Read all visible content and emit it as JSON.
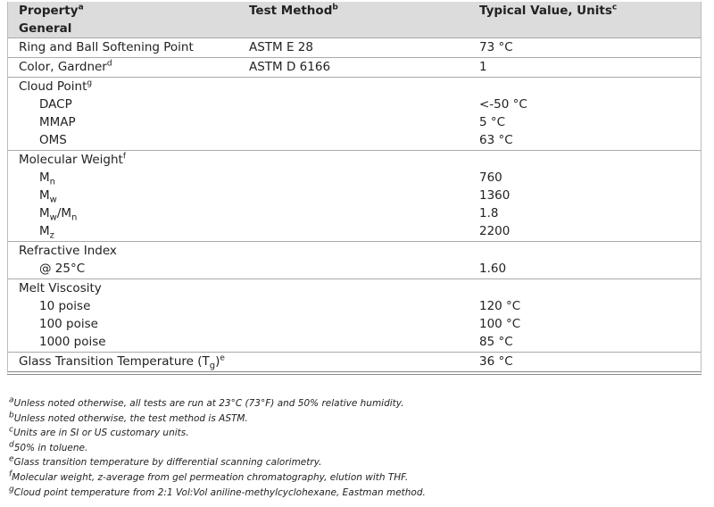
{
  "header": {
    "property": [
      {
        "t": "Property"
      },
      {
        "sup": "a"
      }
    ],
    "method": [
      {
        "t": "Test Method"
      },
      {
        "sup": "b"
      }
    ],
    "value": [
      {
        "t": "Typical Value, Units"
      },
      {
        "sup": "c"
      }
    ]
  },
  "section_title": "General",
  "groups": [
    {
      "label": [
        {
          "t": "Ring and Ball Softening Point"
        }
      ],
      "method": "ASTM E 28",
      "value": "73 °C",
      "items": []
    },
    {
      "label": [
        {
          "t": "Color, Gardner"
        },
        {
          "sup": "d"
        }
      ],
      "method": "ASTM D 6166",
      "value": "1",
      "items": []
    },
    {
      "label": [
        {
          "t": "Cloud Point"
        },
        {
          "sup": "g"
        }
      ],
      "items": [
        {
          "label": [
            {
              "t": "DACP"
            }
          ],
          "value": "<-50 °C"
        },
        {
          "label": [
            {
              "t": "MMAP"
            }
          ],
          "value": "5 °C"
        },
        {
          "label": [
            {
              "t": "OMS"
            }
          ],
          "value": "63 °C"
        }
      ]
    },
    {
      "label": [
        {
          "t": "Molecular Weight"
        },
        {
          "sup": "f"
        }
      ],
      "items": [
        {
          "label": [
            {
              "t": "M"
            },
            {
              "sub": "n"
            }
          ],
          "value": "760"
        },
        {
          "label": [
            {
              "t": "M"
            },
            {
              "sub": "w"
            }
          ],
          "value": "1360"
        },
        {
          "label": [
            {
              "t": "M"
            },
            {
              "sub": "w"
            },
            {
              "t": "/M"
            },
            {
              "sub": "n"
            }
          ],
          "value": "1.8"
        },
        {
          "label": [
            {
              "t": "M"
            },
            {
              "sub": "z"
            }
          ],
          "value": "2200"
        }
      ]
    },
    {
      "label": [
        {
          "t": "Refractive Index"
        }
      ],
      "items": [
        {
          "label": [
            {
              "t": "@ 25°C"
            }
          ],
          "value": "1.60"
        }
      ]
    },
    {
      "label": [
        {
          "t": "Melt Viscosity"
        }
      ],
      "items": [
        {
          "label": [
            {
              "t": "10 poise"
            }
          ],
          "value": "120 °C"
        },
        {
          "label": [
            {
              "t": "100 poise"
            }
          ],
          "value": "100 °C"
        },
        {
          "label": [
            {
              "t": "1000 poise"
            }
          ],
          "value": "85 °C"
        }
      ]
    },
    {
      "label": [
        {
          "t": "Glass Transition Temperature (T"
        },
        {
          "sub": "g"
        },
        {
          "t": ")"
        },
        {
          "sup": "e"
        }
      ],
      "value": "36 °C",
      "items": []
    }
  ],
  "footnotes": [
    {
      "mark": "a",
      "text": "Unless noted otherwise, all tests are run at 23°C (73°F) and 50% relative humidity."
    },
    {
      "mark": "b",
      "text": "Unless noted otherwise, the test method is ASTM."
    },
    {
      "mark": "c",
      "text": "Units are in SI or US customary units."
    },
    {
      "mark": "d",
      "text": "50% in toluene."
    },
    {
      "mark": "e",
      "text": "Glass transition temperature by differential scanning calorimetry."
    },
    {
      "mark": "f",
      "text": "Molecular weight, z-average from gel permeation chromatography, elution with THF."
    },
    {
      "mark": "g",
      "text": "Cloud point temperature from 2:1 Vol:Vol aniline-methylcyclohexane, Eastman method."
    }
  ]
}
